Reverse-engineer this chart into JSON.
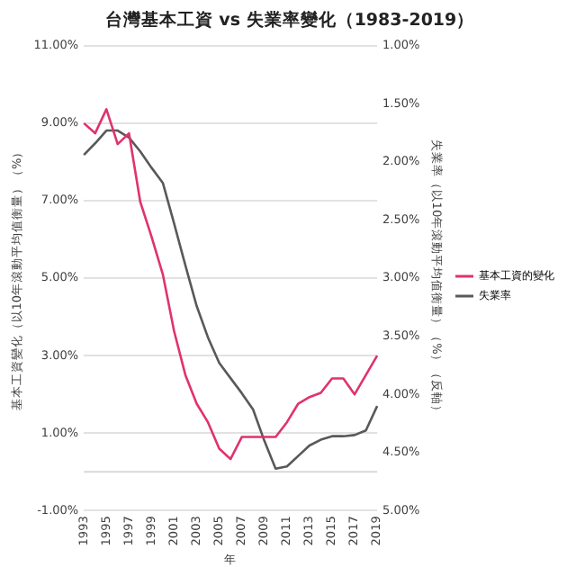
{
  "chart_data": {
    "type": "line",
    "title": "台灣基本工資 vs 失業率變化（1983-2019）",
    "xlabel": "年",
    "ylabel": "基本工資變化（以10年滾動平均值衡量）（%）",
    "y2label": "失業率（以10年滾動平均值衡量）（%）（反軸）",
    "categories": [
      "1993",
      null,
      "1995",
      null,
      "1997",
      null,
      "1999",
      null,
      "2001",
      null,
      "2003",
      null,
      "2005",
      null,
      "2007",
      null,
      "2009",
      null,
      "2011",
      null,
      "2013",
      null,
      "2015",
      null,
      "2017",
      null,
      "2019"
    ],
    "series": [
      {
        "name": "基本工資的變化",
        "color": "#e0336b",
        "values": [
          9.0,
          8.74,
          9.36,
          8.46,
          8.74,
          6.97,
          6.07,
          5.1,
          3.63,
          2.5,
          1.76,
          1.28,
          0.6,
          0.33,
          0.9,
          0.9,
          0.9,
          0.9,
          1.28,
          1.76,
          1.93,
          2.04,
          2.41,
          2.41,
          2.0,
          2.5,
          3.0
        ]
      },
      {
        "name": "失業率",
        "color": "#595959",
        "axis": "y2",
        "values": [
          1.94,
          1.84,
          1.73,
          1.73,
          1.79,
          1.91,
          2.05,
          2.18,
          2.53,
          2.89,
          3.24,
          3.51,
          3.73,
          3.86,
          3.99,
          4.13,
          4.4,
          4.64,
          4.62,
          4.53,
          4.44,
          4.39,
          4.36,
          4.36,
          4.35,
          4.31,
          4.1
        ]
      }
    ],
    "ylim": [
      -1,
      11
    ],
    "yticks": [
      {
        "value": -1,
        "label": "-1.00%"
      },
      {
        "value": 1,
        "label": "1.00%"
      },
      {
        "value": 3,
        "label": "3.00%"
      },
      {
        "value": 5,
        "label": "5.00%"
      },
      {
        "value": 7,
        "label": "7.00%"
      },
      {
        "value": 9,
        "label": "9.00%"
      },
      {
        "value": 11,
        "label": "11.00%"
      }
    ],
    "y2lim": [
      5,
      1
    ],
    "y2ticks": [
      {
        "value": 1,
        "label": "1.00%"
      },
      {
        "value": 1.5,
        "label": "1.50%"
      },
      {
        "value": 2,
        "label": "2.00%"
      },
      {
        "value": 2.5,
        "label": "2.50%"
      },
      {
        "value": 3,
        "label": "3.00%"
      },
      {
        "value": 3.5,
        "label": "3.50%"
      },
      {
        "value": 4,
        "label": "4.00%"
      },
      {
        "value": 4.5,
        "label": "4.50%"
      },
      {
        "value": 5,
        "label": "5.00%"
      }
    ],
    "ref_lines": [
      {
        "axis": "y",
        "value": 0,
        "color": "#d9d9d9"
      }
    ],
    "grid": "y",
    "legend": "right",
    "marker": "none",
    "line_style": "solid"
  }
}
